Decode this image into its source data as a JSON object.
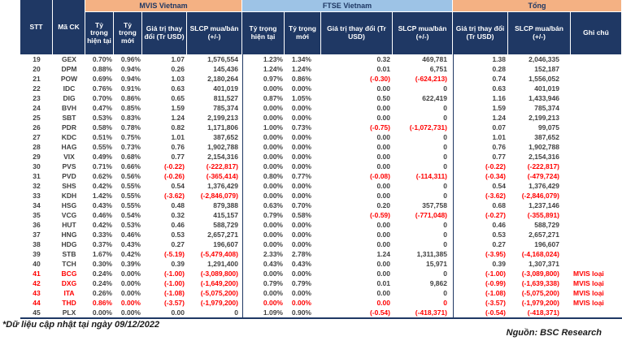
{
  "colors": {
    "navy": "#1f3864",
    "peach": "#f4b183",
    "blue": "#9dc3e6",
    "red": "#ff0000",
    "text": "#404040"
  },
  "table": {
    "corner_stt": "STT",
    "corner_ma_ck": "Mã CK",
    "groups": [
      {
        "label": "MVIS Vietnam",
        "color": "#f4b183"
      },
      {
        "label": "FTSE Vietnam",
        "color": "#9dc3e6"
      },
      {
        "label": "Tổng",
        "color": "#f4b183"
      }
    ],
    "sub": [
      "Tỷ trọng hiện tại",
      "Tỷ trọng mới",
      "Giá trị thay đổi (Tr USD)",
      "SLCP mua/bán (+/-)",
      "Tỷ trọng hiện tại",
      "Tỷ trọng mới",
      "Giá trị thay đổi (Tr USD)",
      "SLCP mua/bán (+/-)",
      "Giá trị thay đổi (Tr USD)",
      "SLCP mua/bán (+/-)",
      "Ghi chú"
    ],
    "rows": [
      {
        "stt": "19",
        "code": "GEX",
        "cells": [
          "0.70%",
          "0.96%",
          "1.07",
          "1,576,554",
          "1.23%",
          "1.34%",
          "0.32",
          "469,781",
          "1.38",
          "2,046,335",
          ""
        ]
      },
      {
        "stt": "20",
        "code": "DPM",
        "cells": [
          "0.88%",
          "0.94%",
          "0.26",
          "145,436",
          "1.24%",
          "1.24%",
          "0.01",
          "6,751",
          "0.28",
          "152,187",
          ""
        ]
      },
      {
        "stt": "21",
        "code": "POW",
        "cells": [
          "0.69%",
          "0.94%",
          "1.03",
          "2,180,264",
          "0.97%",
          "0.86%",
          "(-0.30)",
          "(-624,213)",
          "0.74",
          "1,556,052",
          ""
        ]
      },
      {
        "stt": "22",
        "code": "IDC",
        "cells": [
          "0.76%",
          "0.91%",
          "0.63",
          "401,019",
          "0.00%",
          "0.00%",
          "0.00",
          "0",
          "0.63",
          "401,019",
          ""
        ]
      },
      {
        "stt": "23",
        "code": "DIG",
        "cells": [
          "0.70%",
          "0.86%",
          "0.65",
          "811,527",
          "0.87%",
          "1.05%",
          "0.50",
          "622,419",
          "1.16",
          "1,433,946",
          ""
        ]
      },
      {
        "stt": "24",
        "code": "BVH",
        "cells": [
          "0.47%",
          "0.85%",
          "1.59",
          "785,374",
          "0.00%",
          "0.00%",
          "0.00",
          "0",
          "1.59",
          "785,374",
          ""
        ]
      },
      {
        "stt": "25",
        "code": "SBT",
        "cells": [
          "0.53%",
          "0.83%",
          "1.24",
          "2,199,213",
          "0.00%",
          "0.00%",
          "0.00",
          "0",
          "1.24",
          "2,199,213",
          ""
        ]
      },
      {
        "stt": "26",
        "code": "PDR",
        "cells": [
          "0.58%",
          "0.78%",
          "0.82",
          "1,171,806",
          "1.00%",
          "0.73%",
          "(-0.75)",
          "(-1,072,731)",
          "0.07",
          "99,075",
          ""
        ]
      },
      {
        "stt": "27",
        "code": "KDC",
        "cells": [
          "0.51%",
          "0.75%",
          "1.01",
          "387,652",
          "0.00%",
          "0.00%",
          "0.00",
          "0",
          "1.01",
          "387,652",
          ""
        ]
      },
      {
        "stt": "28",
        "code": "HAG",
        "cells": [
          "0.55%",
          "0.73%",
          "0.76",
          "1,902,788",
          "0.00%",
          "0.00%",
          "0.00",
          "0",
          "0.76",
          "1,902,788",
          ""
        ]
      },
      {
        "stt": "29",
        "code": "VIX",
        "cells": [
          "0.49%",
          "0.68%",
          "0.77",
          "2,154,316",
          "0.00%",
          "0.00%",
          "0.00",
          "0",
          "0.77",
          "2,154,316",
          ""
        ]
      },
      {
        "stt": "30",
        "code": "PVS",
        "cells": [
          "0.71%",
          "0.66%",
          "(-0.22)",
          "(-222,817)",
          "0.00%",
          "0.00%",
          "0.00",
          "0",
          "(-0.22)",
          "(-222,817)",
          ""
        ]
      },
      {
        "stt": "31",
        "code": "PVD",
        "cells": [
          "0.62%",
          "0.56%",
          "(-0.26)",
          "(-365,414)",
          "0.80%",
          "0.77%",
          "(-0.08)",
          "(-114,311)",
          "(-0.34)",
          "(-479,724)",
          ""
        ]
      },
      {
        "stt": "32",
        "code": "SHS",
        "cells": [
          "0.42%",
          "0.55%",
          "0.54",
          "1,376,429",
          "0.00%",
          "0.00%",
          "0.00",
          "0",
          "0.54",
          "1,376,429",
          ""
        ]
      },
      {
        "stt": "33",
        "code": "KDH",
        "cells": [
          "1.42%",
          "0.55%",
          "(-3.62)",
          "(-2,846,079)",
          "0.00%",
          "0.00%",
          "0.00",
          "0",
          "(-3.62)",
          "(-2,846,079)",
          ""
        ]
      },
      {
        "stt": "34",
        "code": "HSG",
        "cells": [
          "0.43%",
          "0.55%",
          "0.48",
          "879,388",
          "0.63%",
          "0.70%",
          "0.20",
          "357,758",
          "0.68",
          "1,237,146",
          ""
        ]
      },
      {
        "stt": "35",
        "code": "VCG",
        "cells": [
          "0.46%",
          "0.54%",
          "0.32",
          "415,157",
          "0.79%",
          "0.58%",
          "(-0.59)",
          "(-771,048)",
          "(-0.27)",
          "(-355,891)",
          ""
        ]
      },
      {
        "stt": "36",
        "code": "HUT",
        "cells": [
          "0.42%",
          "0.53%",
          "0.46",
          "588,729",
          "0.00%",
          "0.00%",
          "0.00",
          "0",
          "0.46",
          "588,729",
          ""
        ]
      },
      {
        "stt": "37",
        "code": "HNG",
        "cells": [
          "0.33%",
          "0.46%",
          "0.53",
          "2,657,271",
          "0.00%",
          "0.00%",
          "0.00",
          "0",
          "0.53",
          "2,657,271",
          ""
        ]
      },
      {
        "stt": "38",
        "code": "HDG",
        "cells": [
          "0.37%",
          "0.43%",
          "0.27",
          "196,607",
          "0.00%",
          "0.00%",
          "0.00",
          "0",
          "0.27",
          "196,607",
          ""
        ]
      },
      {
        "stt": "39",
        "code": "STB",
        "cells": [
          "1.67%",
          "0.42%",
          "(-5.19)",
          "(-5,479,408)",
          "2.33%",
          "2.78%",
          "1.24",
          "1,311,385",
          "(-3.95)",
          "(-4,168,024)",
          ""
        ]
      },
      {
        "stt": "40",
        "code": "TCH",
        "cells": [
          "0.30%",
          "0.39%",
          "0.39",
          "1,291,400",
          "0.43%",
          "0.43%",
          "0.00",
          "15,971",
          "0.39",
          "1,307,371",
          ""
        ]
      },
      {
        "stt": "41",
        "code": "BCG",
        "red_id": true,
        "cells": [
          "0.24%",
          "0.00%",
          "(-1.00)",
          "(-3,089,800)",
          "0.00%",
          "0.00%",
          "0.00",
          "0",
          "(-1.00)",
          "(-3,089,800)",
          "MVIS loại"
        ]
      },
      {
        "stt": "42",
        "code": "DXG",
        "red_id": true,
        "cells": [
          "0.24%",
          "0.00%",
          "(-1.00)",
          "(-1,649,200)",
          "0.79%",
          "0.79%",
          "0.01",
          "9,862",
          "(-0.99)",
          "(-1,639,338)",
          "MVIS loại"
        ]
      },
      {
        "stt": "43",
        "code": "ITA",
        "red_id": true,
        "cells": [
          "0.26%",
          "0.00%",
          "(-1.08)",
          "(-5,075,200)",
          "0.00%",
          "0.00%",
          "0.00",
          "0",
          "(-1.08)",
          "(-5,075,200)",
          "MVIS loại"
        ]
      },
      {
        "stt": "44",
        "code": "THD",
        "red_all": true,
        "cells": [
          "0.86%",
          "0.00%",
          "(-3.57)",
          "(-1,979,200)",
          "0.00%",
          "0.00%",
          "0.00",
          "0",
          "(-3.57)",
          "(-1,979,200)",
          "MVIS loại"
        ]
      },
      {
        "stt": "45",
        "code": "PLX",
        "cells": [
          "0.00%",
          "0.00%",
          "0.00",
          "0",
          "1.09%",
          "0.90%",
          "(-0.54)",
          "(-418,371)",
          "(-0.54)",
          "(-418,371)",
          ""
        ]
      }
    ]
  },
  "footer": {
    "note": "*Dữ liệu cập nhật tại ngày 09/12/2022",
    "source": "Nguồn: BSC Research"
  }
}
